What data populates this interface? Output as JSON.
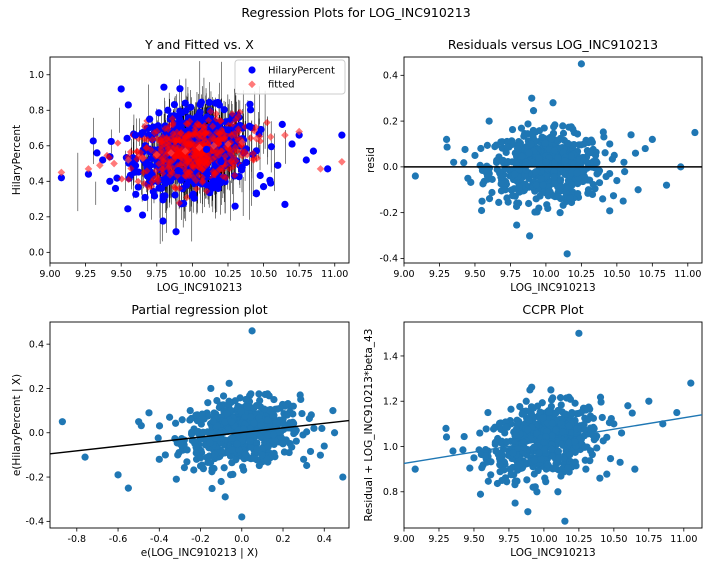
{
  "figure": {
    "suptitle": "Regression Plots for LOG_INC910213"
  },
  "chart_data": [
    {
      "id": "fit",
      "type": "scatter",
      "title": "Y and Fitted vs. X",
      "xlabel": "LOG_INC910213",
      "ylabel": "HilaryPercent",
      "xlim": [
        9.0,
        11.1
      ],
      "ylim": [
        -0.06,
        1.1
      ],
      "xticks": [
        "9.00",
        "9.25",
        "9.50",
        "9.75",
        "10.00",
        "10.25",
        "10.50",
        "10.75",
        "11.00"
      ],
      "yticks": [
        "0.0",
        "0.2",
        "0.4",
        "0.6",
        "0.8",
        "1.0"
      ],
      "legend": {
        "position": "top-right",
        "entries": [
          "HilaryPercent",
          "fitted"
        ]
      },
      "series": [
        {
          "name": "HilaryPercent",
          "marker": "circle",
          "color": "#0000ff",
          "values": [
            [
              9.08,
              0.42
            ],
            [
              9.27,
              0.44
            ],
            [
              9.33,
              0.56
            ],
            [
              9.37,
              0.52
            ],
            [
              9.42,
              0.4
            ],
            [
              9.46,
              0.36
            ],
            [
              9.5,
              0.92
            ],
            [
              9.55,
              0.83
            ],
            [
              9.6,
              0.66
            ],
            [
              9.65,
              0.21
            ],
            [
              9.7,
              0.75
            ],
            [
              9.8,
              0.93
            ],
            [
              9.9,
              0.46
            ],
            [
              9.95,
              0.84
            ],
            [
              10.0,
              0.32
            ],
            [
              10.05,
              0.78
            ],
            [
              10.1,
              0.58
            ],
            [
              10.15,
              0.4
            ],
            [
              10.2,
              0.51
            ],
            [
              10.25,
              0.69
            ],
            [
              10.3,
              0.26
            ],
            [
              10.35,
              0.48
            ],
            [
              10.4,
              0.71
            ],
            [
              10.45,
              0.33
            ],
            [
              10.5,
              0.37
            ],
            [
              10.55,
              0.39
            ],
            [
              10.6,
              0.49
            ],
            [
              10.65,
              0.27
            ],
            [
              10.7,
              0.61
            ],
            [
              10.75,
              0.66
            ],
            [
              10.8,
              0.52
            ],
            [
              10.85,
              0.57
            ],
            [
              10.95,
              0.47
            ],
            [
              11.05,
              0.66
            ]
          ]
        },
        {
          "name": "fitted",
          "marker": "diamond",
          "color": "#ff4040",
          "values": [
            [
              9.08,
              0.45
            ],
            [
              9.27,
              0.47
            ],
            [
              9.35,
              0.49
            ],
            [
              9.45,
              0.5
            ],
            [
              9.55,
              0.52
            ],
            [
              9.65,
              0.53
            ],
            [
              9.75,
              0.55
            ],
            [
              9.85,
              0.56
            ],
            [
              9.95,
              0.57
            ],
            [
              10.05,
              0.59
            ],
            [
              10.15,
              0.6
            ],
            [
              10.25,
              0.61
            ],
            [
              10.35,
              0.62
            ],
            [
              10.45,
              0.64
            ],
            [
              10.55,
              0.65
            ],
            [
              10.65,
              0.66
            ],
            [
              10.75,
              0.68
            ],
            [
              10.9,
              0.47
            ],
            [
              11.05,
              0.51
            ]
          ]
        }
      ]
    },
    {
      "id": "resid",
      "type": "scatter",
      "title": "Residuals versus LOG_INC910213",
      "xlabel": "LOG_INC910213",
      "ylabel": "resid",
      "xlim": [
        9.0,
        11.1
      ],
      "ylim": [
        -0.42,
        0.48
      ],
      "xticks": [
        "9.00",
        "9.25",
        "9.50",
        "9.75",
        "10.00",
        "10.25",
        "10.50",
        "10.75",
        "11.00"
      ],
      "yticks": [
        "-0.4",
        "-0.2",
        "0.0",
        "0.2",
        "0.4"
      ],
      "hline": 0.0,
      "series": [
        {
          "name": "",
          "marker": "circle",
          "color": "#1f77b4",
          "values": [
            [
              9.08,
              -0.04
            ],
            [
              9.3,
              0.12
            ],
            [
              9.35,
              0.02
            ],
            [
              9.45,
              -0.05
            ],
            [
              9.5,
              0.05
            ],
            [
              9.55,
              -0.15
            ],
            [
              9.6,
              0.2
            ],
            [
              9.7,
              -0.1
            ],
            [
              9.8,
              0.08
            ],
            [
              9.9,
              0.3
            ],
            [
              9.95,
              -0.18
            ],
            [
              10.0,
              0.02
            ],
            [
              10.05,
              0.28
            ],
            [
              10.1,
              -0.2
            ],
            [
              10.15,
              -0.38
            ],
            [
              10.2,
              0.15
            ],
            [
              10.25,
              0.45
            ],
            [
              10.3,
              -0.1
            ],
            [
              10.35,
              0.05
            ],
            [
              10.4,
              -0.14
            ],
            [
              10.45,
              0.1
            ],
            [
              10.5,
              -0.06
            ],
            [
              10.55,
              0.02
            ],
            [
              10.6,
              0.14
            ],
            [
              10.65,
              -0.1
            ],
            [
              10.7,
              0.08
            ],
            [
              10.75,
              0.12
            ],
            [
              10.85,
              -0.08
            ],
            [
              10.95,
              0.0
            ],
            [
              11.05,
              0.15
            ]
          ]
        }
      ]
    },
    {
      "id": "partial",
      "type": "scatter",
      "title": "Partial regression plot",
      "xlabel": "e(LOG_INC910213 | X)",
      "ylabel": "e(HilaryPercent | X)",
      "xlim": [
        -0.93,
        0.52
      ],
      "ylim": [
        -0.43,
        0.5
      ],
      "xticks": [
        "-0.8",
        "-0.6",
        "-0.4",
        "-0.2",
        "0.0",
        "0.2",
        "0.4"
      ],
      "yticks": [
        "-0.4",
        "-0.2",
        "0.0",
        "0.2",
        "0.4"
      ],
      "fit_line": [
        [
          -0.93,
          -0.095
        ],
        [
          0.52,
          0.055
        ]
      ],
      "series": [
        {
          "name": "",
          "marker": "circle",
          "color": "#1f77b4",
          "values": [
            [
              -0.87,
              0.05
            ],
            [
              -0.76,
              -0.11
            ],
            [
              -0.6,
              -0.19
            ],
            [
              -0.55,
              -0.25
            ],
            [
              -0.5,
              0.05
            ],
            [
              -0.45,
              0.09
            ],
            [
              -0.4,
              -0.12
            ],
            [
              -0.35,
              0.07
            ],
            [
              -0.3,
              -0.05
            ],
            [
              -0.25,
              0.1
            ],
            [
              -0.2,
              -0.15
            ],
            [
              -0.15,
              0.2
            ],
            [
              -0.1,
              -0.22
            ],
            [
              -0.05,
              0.05
            ],
            [
              0.0,
              -0.38
            ],
            [
              0.02,
              0.15
            ],
            [
              0.05,
              0.46
            ],
            [
              0.1,
              -0.1
            ],
            [
              0.15,
              0.08
            ],
            [
              0.2,
              -0.05
            ],
            [
              0.25,
              0.12
            ],
            [
              0.3,
              -0.12
            ],
            [
              0.35,
              0.02
            ],
            [
              0.4,
              -0.06
            ],
            [
              0.45,
              0.0
            ],
            [
              0.49,
              -0.2
            ]
          ]
        }
      ]
    },
    {
      "id": "ccpr",
      "type": "scatter",
      "title": "CCPR Plot",
      "xlabel": "LOG_INC910213",
      "ylabel": "Residual + LOG_INC910213*beta_43",
      "xlim": [
        9.0,
        11.13
      ],
      "ylim": [
        0.64,
        1.55
      ],
      "xticks": [
        "9.00",
        "9.25",
        "9.50",
        "9.75",
        "10.00",
        "10.25",
        "10.50",
        "10.75",
        "11.00"
      ],
      "yticks": [
        "0.8",
        "1.0",
        "1.2",
        "1.4"
      ],
      "fit_line": [
        [
          9.0,
          0.925
        ],
        [
          11.13,
          1.14
        ]
      ],
      "series": [
        {
          "name": "",
          "marker": "circle",
          "color": "#1f77b4",
          "values": [
            [
              9.08,
              0.9
            ],
            [
              9.3,
              1.08
            ],
            [
              9.35,
              0.98
            ],
            [
              9.5,
              0.95
            ],
            [
              9.6,
              1.15
            ],
            [
              9.7,
              0.85
            ],
            [
              9.8,
              1.05
            ],
            [
              9.9,
              1.25
            ],
            [
              9.95,
              0.8
            ],
            [
              10.0,
              1.02
            ],
            [
              10.05,
              1.25
            ],
            [
              10.1,
              0.8
            ],
            [
              10.15,
              0.67
            ],
            [
              10.2,
              1.15
            ],
            [
              10.25,
              1.5
            ],
            [
              10.3,
              0.9
            ],
            [
              10.35,
              1.05
            ],
            [
              10.4,
              0.86
            ],
            [
              10.5,
              1.1
            ],
            [
              10.6,
              1.18
            ],
            [
              10.65,
              0.9
            ],
            [
              10.75,
              1.2
            ],
            [
              10.85,
              1.1
            ],
            [
              10.95,
              1.15
            ],
            [
              11.05,
              1.28
            ]
          ]
        }
      ]
    }
  ]
}
